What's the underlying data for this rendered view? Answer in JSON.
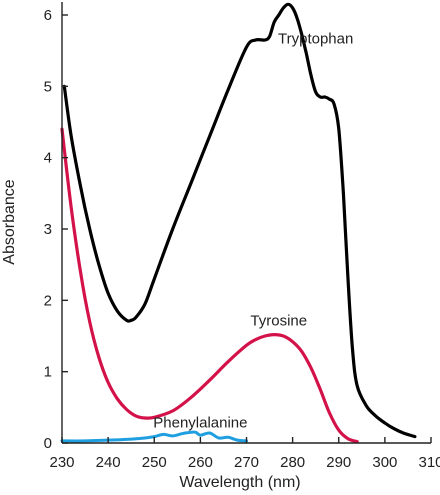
{
  "chart_data": {
    "type": "line",
    "title": "",
    "xlabel": "Wavelength (nm)",
    "ylabel": "Absorbance",
    "xlim": [
      230,
      310
    ],
    "ylim": [
      0,
      6.2
    ],
    "xticks": [
      230,
      240,
      250,
      260,
      270,
      280,
      290,
      300,
      310
    ],
    "yticks": [
      0,
      1,
      2,
      3,
      4,
      5,
      6
    ],
    "grid": false,
    "legend": "none",
    "series": [
      {
        "name": "Tryptophan",
        "color": "#000000",
        "label_at": [
          285,
          5.6
        ],
        "x": [
          230.5,
          232,
          234,
          236,
          238,
          240,
          242,
          244,
          245,
          246,
          248,
          250,
          254,
          258,
          262,
          266,
          270,
          272,
          274,
          275,
          276,
          277,
          278,
          279,
          280,
          281,
          282,
          283,
          284,
          285,
          286,
          287,
          288,
          289,
          290,
          291,
          292,
          293,
          294,
          296,
          298,
          300,
          302,
          304,
          306.5
        ],
        "y": [
          5.0,
          4.3,
          3.6,
          3.0,
          2.5,
          2.1,
          1.85,
          1.72,
          1.72,
          1.76,
          1.95,
          2.3,
          3.0,
          3.65,
          4.3,
          4.95,
          5.55,
          5.65,
          5.65,
          5.7,
          5.9,
          6.0,
          6.1,
          6.15,
          6.1,
          5.95,
          5.72,
          5.45,
          5.15,
          4.92,
          4.85,
          4.85,
          4.82,
          4.75,
          4.4,
          3.5,
          2.3,
          1.3,
          0.8,
          0.52,
          0.38,
          0.28,
          0.2,
          0.14,
          0.09
        ]
      },
      {
        "name": "Tyrosine",
        "color": "#d4124a",
        "label_at": [
          277,
          1.65
        ],
        "x": [
          230,
          232,
          234,
          236,
          238,
          240,
          242,
          244,
          246,
          248,
          250,
          254,
          258,
          262,
          266,
          270,
          272,
          274,
          276,
          278,
          280,
          282,
          284,
          286,
          288,
          290,
          292,
          294
        ],
        "y": [
          4.4,
          3.3,
          2.4,
          1.7,
          1.2,
          0.85,
          0.62,
          0.47,
          0.38,
          0.35,
          0.36,
          0.45,
          0.64,
          0.88,
          1.14,
          1.37,
          1.45,
          1.5,
          1.52,
          1.5,
          1.42,
          1.28,
          1.05,
          0.75,
          0.42,
          0.18,
          0.06,
          0.02
        ]
      },
      {
        "name": "Phenylalanine",
        "color": "#1f9fe0",
        "label_at": [
          260,
          0.22
        ],
        "x": [
          230,
          235,
          240,
          244,
          248,
          250,
          252,
          254,
          256,
          258,
          259,
          260,
          262,
          264,
          266,
          268,
          270
        ],
        "y": [
          0.03,
          0.03,
          0.04,
          0.05,
          0.07,
          0.09,
          0.12,
          0.1,
          0.13,
          0.15,
          0.15,
          0.11,
          0.14,
          0.07,
          0.08,
          0.04,
          0.03
        ]
      }
    ]
  }
}
